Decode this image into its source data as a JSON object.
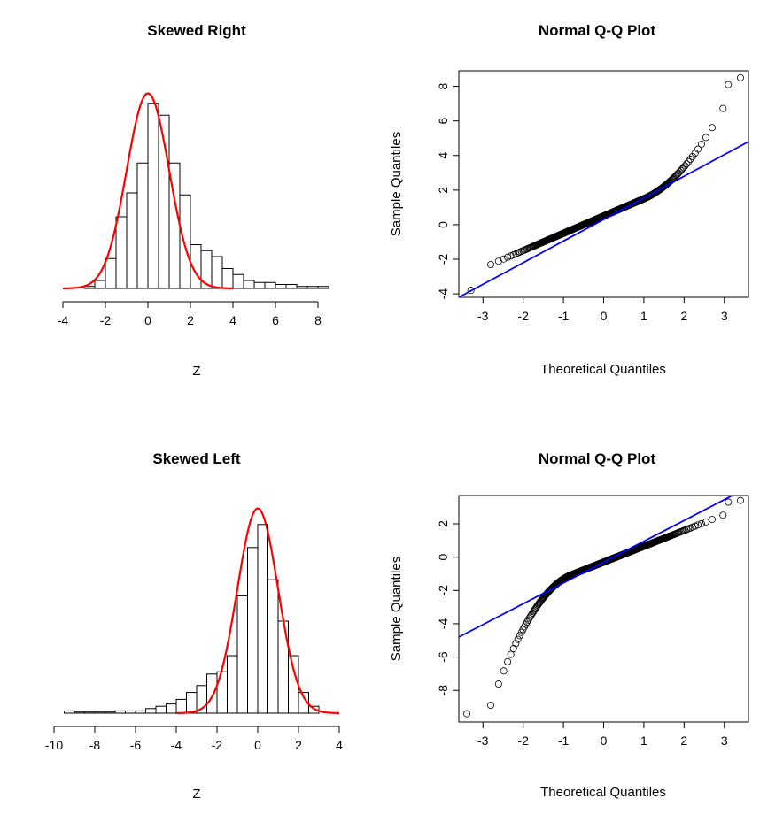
{
  "chart_data": [
    {
      "type": "bar",
      "subtype": "histogram",
      "title": "Skewed Right",
      "xlabel": "Z",
      "ylabel": "",
      "xlim": [
        -4,
        8.5
      ],
      "xticks": [
        -4,
        -2,
        0,
        2,
        4,
        6,
        8
      ],
      "bin_width": 0.5,
      "bins": [
        {
          "x0": -3.0,
          "x1": -2.5,
          "count": 1
        },
        {
          "x0": -2.5,
          "x1": -2.0,
          "count": 4
        },
        {
          "x0": -2.0,
          "x1": -1.5,
          "count": 15
        },
        {
          "x0": -1.5,
          "x1": -1.0,
          "count": 36
        },
        {
          "x0": -1.0,
          "x1": -0.5,
          "count": 48
        },
        {
          "x0": -0.5,
          "x1": 0.0,
          "count": 63
        },
        {
          "x0": 0.0,
          "x1": 0.5,
          "count": 93
        },
        {
          "x0": 0.5,
          "x1": 1.0,
          "count": 87
        },
        {
          "x0": 1.0,
          "x1": 1.5,
          "count": 63
        },
        {
          "x0": 1.5,
          "x1": 2.0,
          "count": 47
        },
        {
          "x0": 2.0,
          "x1": 2.5,
          "count": 22
        },
        {
          "x0": 2.5,
          "x1": 3.0,
          "count": 19
        },
        {
          "x0": 3.0,
          "x1": 3.5,
          "count": 16
        },
        {
          "x0": 3.5,
          "x1": 4.0,
          "count": 10
        },
        {
          "x0": 4.0,
          "x1": 4.5,
          "count": 7
        },
        {
          "x0": 4.5,
          "x1": 5.0,
          "count": 4
        },
        {
          "x0": 5.0,
          "x1": 5.5,
          "count": 3
        },
        {
          "x0": 5.5,
          "x1": 6.0,
          "count": 3
        },
        {
          "x0": 6.0,
          "x1": 6.5,
          "count": 2
        },
        {
          "x0": 6.5,
          "x1": 7.0,
          "count": 2
        },
        {
          "x0": 7.0,
          "x1": 7.5,
          "count": 1
        },
        {
          "x0": 7.5,
          "x1": 8.0,
          "count": 1
        },
        {
          "x0": 8.0,
          "x1": 8.5,
          "count": 1
        }
      ],
      "ymax": 93,
      "curve": {
        "mean": 0,
        "sd": 1,
        "peak_count": 98,
        "color": "#ff0000",
        "xrange": [
          -4,
          4
        ]
      },
      "bar_fill": "#ffffff",
      "bar_stroke": "#000000"
    },
    {
      "type": "scatter",
      "subtype": "qqplot",
      "title": "Normal Q-Q Plot",
      "xlabel": "Theoretical Quantiles",
      "ylabel": "Sample Quantiles",
      "xlim": [
        -3.6,
        3.6
      ],
      "ylim": [
        -4.2,
        8.9
      ],
      "xticks": [
        -3,
        -2,
        -1,
        0,
        1,
        2,
        3
      ],
      "yticks": [
        -4,
        -2,
        0,
        2,
        4,
        6,
        8
      ],
      "n_points": 1000,
      "quantile_curve": {
        "type": "right-skew",
        "x_break": 1.0,
        "a": 1.0,
        "b": 0.5,
        "c": 0.28
      },
      "outliers": [
        {
          "x": -3.3,
          "y": -3.8
        },
        {
          "x": 3.1,
          "y": 8.1
        },
        {
          "x": 3.4,
          "y": 8.5
        }
      ],
      "reference_line": {
        "intercept": 0.3,
        "slope": 1.25,
        "color": "#0000ff"
      },
      "point_color": "#000000"
    },
    {
      "type": "bar",
      "subtype": "histogram",
      "title": "Skewed Left",
      "xlabel": "Z",
      "ylabel": "",
      "xlim": [
        -10,
        4
      ],
      "xticks": [
        -10,
        -8,
        -6,
        -4,
        -2,
        0,
        2,
        4
      ],
      "bin_width": 0.5,
      "bins": [
        {
          "x0": -9.5,
          "x1": -9.0,
          "count": 1
        },
        {
          "x0": -9.0,
          "x1": -8.5,
          "count": 0.5
        },
        {
          "x0": -8.5,
          "x1": -8.0,
          "count": 0.5
        },
        {
          "x0": -8.0,
          "x1": -7.5,
          "count": 0.5
        },
        {
          "x0": -7.5,
          "x1": -7.0,
          "count": 0.5
        },
        {
          "x0": -7.0,
          "x1": -6.5,
          "count": 1
        },
        {
          "x0": -6.5,
          "x1": -6.0,
          "count": 1
        },
        {
          "x0": -6.0,
          "x1": -5.5,
          "count": 1
        },
        {
          "x0": -5.5,
          "x1": -5.0,
          "count": 2
        },
        {
          "x0": -5.0,
          "x1": -4.5,
          "count": 3
        },
        {
          "x0": -4.5,
          "x1": -4.0,
          "count": 4
        },
        {
          "x0": -4.0,
          "x1": -3.5,
          "count": 6
        },
        {
          "x0": -3.5,
          "x1": -3.0,
          "count": 9
        },
        {
          "x0": -3.0,
          "x1": -2.5,
          "count": 12
        },
        {
          "x0": -2.5,
          "x1": -2.0,
          "count": 17
        },
        {
          "x0": -2.0,
          "x1": -1.5,
          "count": 18
        },
        {
          "x0": -1.5,
          "x1": -1.0,
          "count": 25
        },
        {
          "x0": -1.0,
          "x1": -0.5,
          "count": 51
        },
        {
          "x0": -0.5,
          "x1": 0.0,
          "count": 72
        },
        {
          "x0": 0.0,
          "x1": 0.5,
          "count": 82
        },
        {
          "x0": 0.5,
          "x1": 1.0,
          "count": 58
        },
        {
          "x0": 1.0,
          "x1": 1.5,
          "count": 40
        },
        {
          "x0": 1.5,
          "x1": 2.0,
          "count": 25
        },
        {
          "x0": 2.0,
          "x1": 2.5,
          "count": 9
        },
        {
          "x0": 2.5,
          "x1": 3.0,
          "count": 3
        }
      ],
      "ymax": 82,
      "curve": {
        "mean": 0,
        "sd": 1,
        "peak_count": 89,
        "color": "#ff0000",
        "xrange": [
          -4,
          4
        ]
      },
      "bar_fill": "#ffffff",
      "bar_stroke": "#000000"
    },
    {
      "type": "scatter",
      "subtype": "qqplot",
      "title": "Normal Q-Q Plot",
      "xlabel": "Theoretical Quantiles",
      "ylabel": "Sample Quantiles",
      "xlim": [
        -3.6,
        3.6
      ],
      "ylim": [
        -9.9,
        3.7
      ],
      "xticks": [
        -3,
        -2,
        -1,
        0,
        1,
        2,
        3
      ],
      "yticks": [
        -8,
        -6,
        -4,
        -2,
        0,
        2
      ],
      "n_points": 1000,
      "quantile_curve": {
        "type": "left-skew",
        "x_break": -0.8,
        "a": 0.95,
        "b": -0.3,
        "c": 0.95
      },
      "outliers": [
        {
          "x": -3.4,
          "y": -9.4
        },
        {
          "x": 3.1,
          "y": 3.3
        },
        {
          "x": 3.4,
          "y": 3.4
        }
      ],
      "reference_line": {
        "intercept": -0.3,
        "slope": 1.25,
        "color": "#0000ff"
      },
      "point_color": "#000000"
    }
  ]
}
